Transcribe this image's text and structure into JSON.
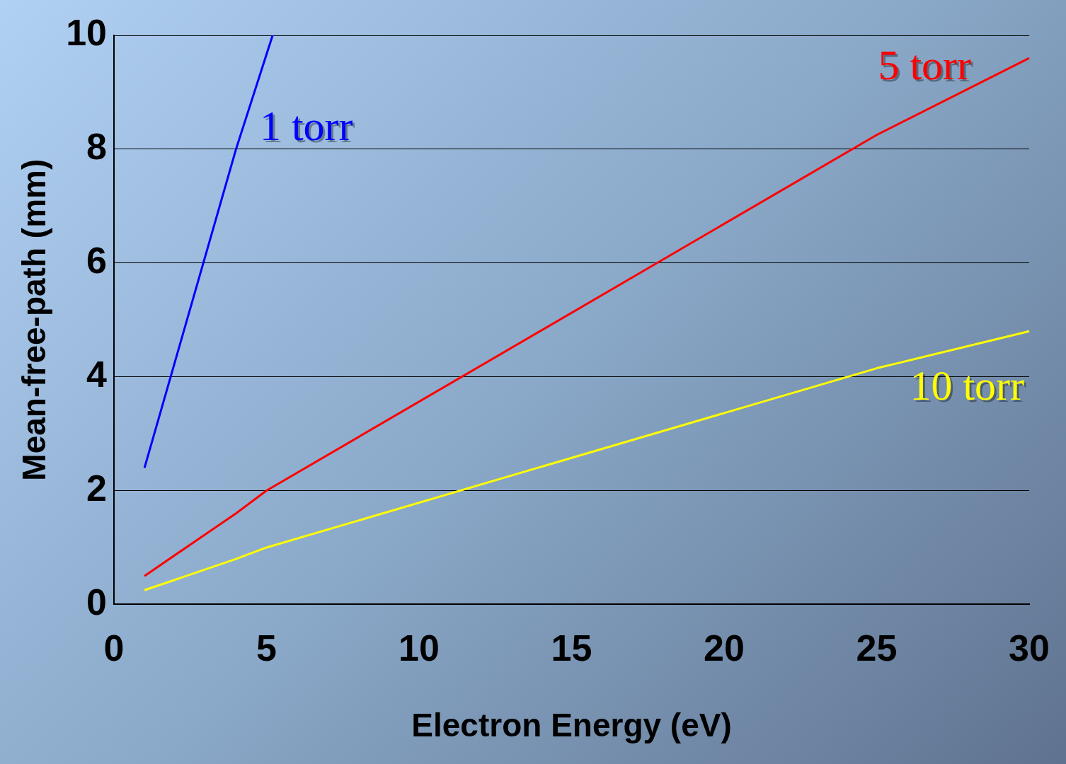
{
  "chart_data": {
    "type": "line",
    "xlabel": "Electron Energy (eV)",
    "ylabel": "Mean-free-path (mm)",
    "xlim": [
      0,
      30
    ],
    "xticks": [
      0,
      5,
      10,
      15,
      20,
      25,
      30
    ],
    "ylim": [
      0,
      10
    ],
    "yticks": [
      0,
      2,
      4,
      6,
      8,
      10
    ],
    "grid": "y",
    "legend": false,
    "marker": "none",
    "line_style": "solid",
    "series": [
      {
        "name": "1 torr",
        "color": "#0000ff",
        "x": [
          1,
          4,
          5.2
        ],
        "values": [
          2.4,
          8,
          10
        ]
      },
      {
        "name": "5 torr",
        "color": "#ff0000",
        "x": [
          1,
          4,
          5,
          25,
          30
        ],
        "values": [
          0.5,
          1.6,
          2.0,
          8.25,
          9.6
        ]
      },
      {
        "name": "10 torr",
        "color": "#ffff00",
        "x": [
          1,
          4,
          5,
          25,
          30
        ],
        "values": [
          0.25,
          0.8,
          1.0,
          4.15,
          4.8
        ]
      }
    ]
  }
}
